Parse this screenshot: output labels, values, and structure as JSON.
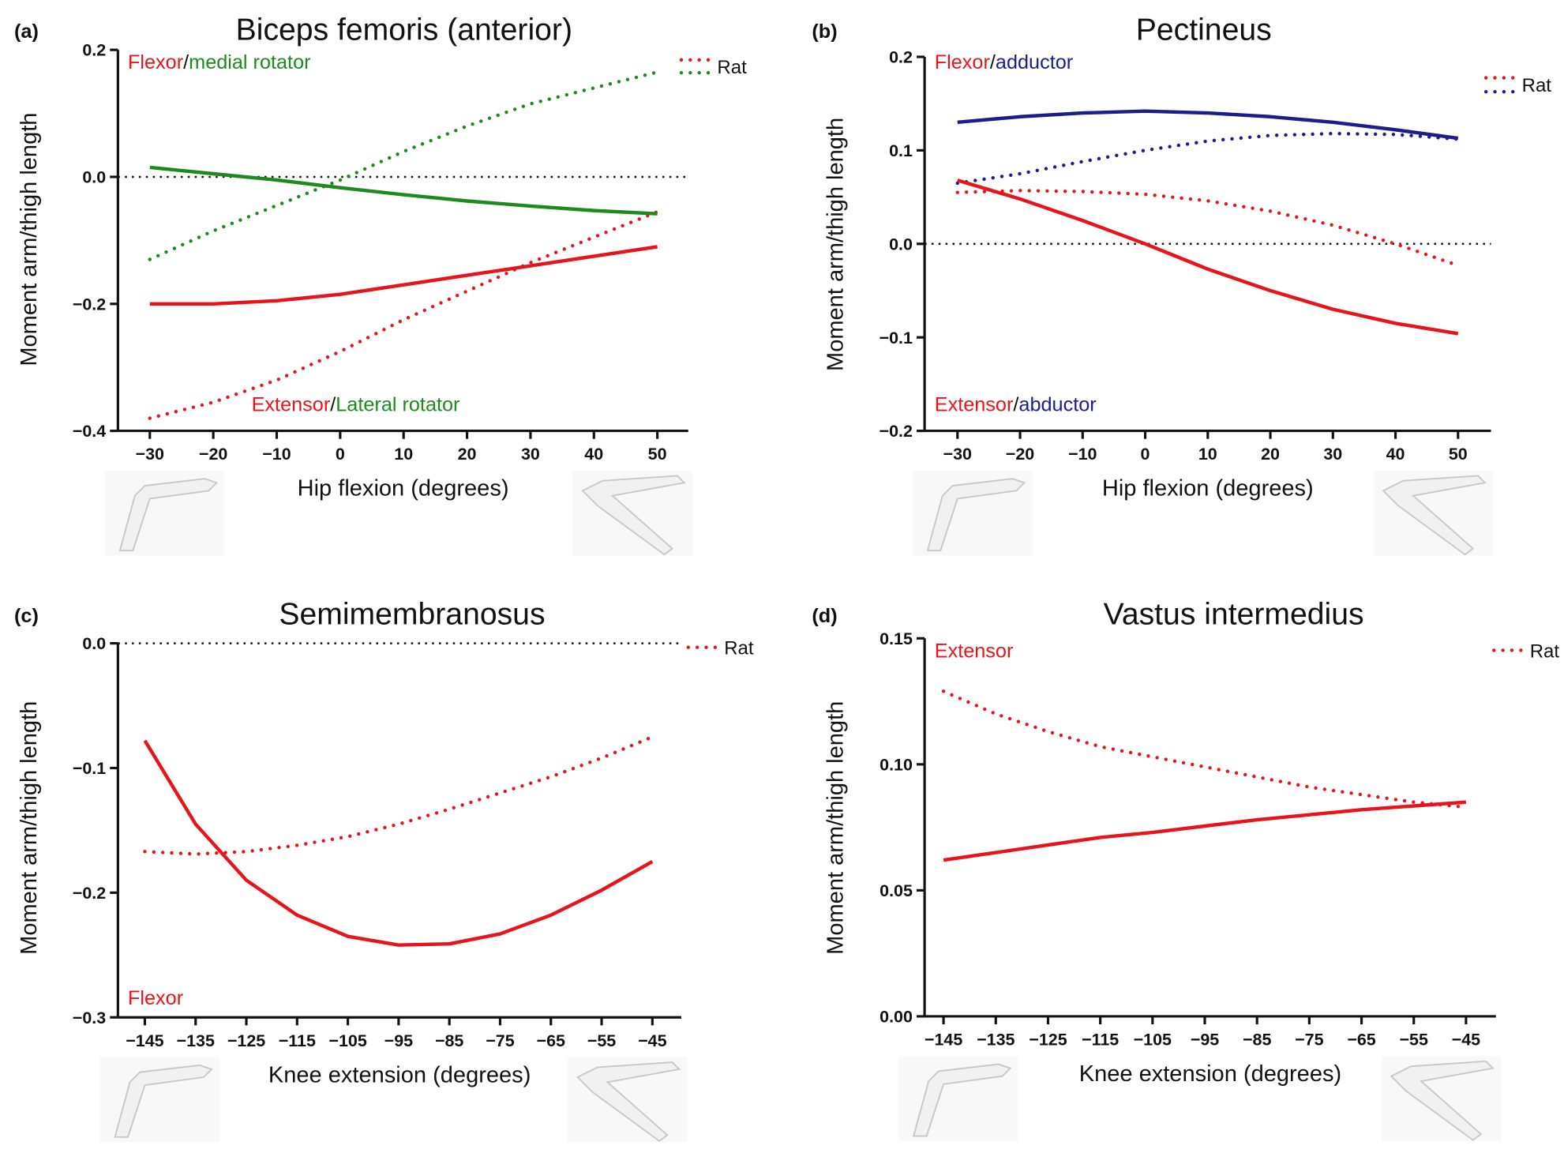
{
  "colors": {
    "red": "#e8141c",
    "green": "#1e8a1e",
    "blue": "#1c1c8c",
    "axis": "#111111"
  },
  "chart_data": [
    {
      "type": "line",
      "panel_label": "(a)",
      "title": "Biceps femoris (anterior)",
      "xlabel": "Hip flexion (degrees)",
      "ylabel": "Moment arm/thigh length",
      "xlim": [
        -30,
        50
      ],
      "ylim": [
        -0.4,
        0.2
      ],
      "xticks": [
        "−30",
        "−20",
        "−10",
        "0",
        "10",
        "20",
        "30",
        "40",
        "50"
      ],
      "xtick_values": [
        -30,
        -20,
        -10,
        0,
        10,
        20,
        30,
        40,
        50
      ],
      "yticks": [
        "0.2",
        "0.0",
        "−0.2",
        "−0.4"
      ],
      "ytick_values": [
        0.2,
        0.0,
        -0.2,
        -0.4
      ],
      "zero_line": true,
      "annotations": [
        {
          "parts": [
            {
              "text": "Flexor",
              "color": "red"
            },
            {
              "text": "/",
              "color": "axis"
            },
            {
              "text": "medial rotator",
              "color": "green"
            }
          ],
          "position": "top-left"
        },
        {
          "parts": [
            {
              "text": "Extensor",
              "color": "red"
            },
            {
              "text": "/",
              "color": "axis"
            },
            {
              "text": "Lateral rotator",
              "color": "green"
            }
          ],
          "position": "bottom-center"
        }
      ],
      "legend": {
        "label": "Rat",
        "style": "dotted",
        "colors": [
          "red",
          "green"
        ],
        "position": "top-right"
      },
      "x": [
        -30,
        -20,
        -10,
        0,
        10,
        20,
        30,
        40,
        50
      ],
      "series": [
        {
          "color": "red",
          "style": "solid",
          "values": [
            -0.2,
            -0.2,
            -0.195,
            -0.185,
            -0.17,
            -0.155,
            -0.14,
            -0.125,
            -0.11
          ]
        },
        {
          "color": "red",
          "style": "dotted",
          "values": [
            -0.38,
            -0.355,
            -0.32,
            -0.275,
            -0.225,
            -0.18,
            -0.135,
            -0.095,
            -0.055
          ]
        },
        {
          "color": "green",
          "style": "solid",
          "values": [
            0.015,
            0.005,
            -0.005,
            -0.017,
            -0.028,
            -0.038,
            -0.046,
            -0.053,
            -0.058
          ]
        },
        {
          "color": "green",
          "style": "dotted",
          "values": [
            -0.13,
            -0.085,
            -0.045,
            -0.005,
            0.04,
            0.08,
            0.115,
            0.14,
            0.165
          ]
        }
      ]
    },
    {
      "type": "line",
      "panel_label": "(b)",
      "title": "Pectineus",
      "xlabel": "Hip flexion (degrees)",
      "ylabel": "Moment arm/thigh length",
      "xlim": [
        -30,
        50
      ],
      "ylim": [
        -0.2,
        0.2
      ],
      "xticks": [
        "−30",
        "−20",
        "−10",
        "0",
        "10",
        "20",
        "30",
        "40",
        "50"
      ],
      "xtick_values": [
        -30,
        -20,
        -10,
        0,
        10,
        20,
        30,
        40,
        50
      ],
      "yticks": [
        "0.2",
        "0.1",
        "0.0",
        "−0.1",
        "−0.2"
      ],
      "ytick_values": [
        0.2,
        0.1,
        0.0,
        -0.1,
        -0.2
      ],
      "zero_line": true,
      "annotations": [
        {
          "parts": [
            {
              "text": "Flexor",
              "color": "red"
            },
            {
              "text": "/",
              "color": "axis"
            },
            {
              "text": "adductor",
              "color": "blue"
            }
          ],
          "position": "top-left"
        },
        {
          "parts": [
            {
              "text": "Extensor",
              "color": "red"
            },
            {
              "text": "/",
              "color": "axis"
            },
            {
              "text": "abductor",
              "color": "blue"
            }
          ],
          "position": "bottom-left"
        }
      ],
      "legend": {
        "label": "Rat",
        "style": "dotted",
        "colors": [
          "red",
          "blue"
        ],
        "position": "top-right"
      },
      "x": [
        -30,
        -20,
        -10,
        0,
        10,
        20,
        30,
        40,
        50
      ],
      "series": [
        {
          "color": "blue",
          "style": "solid",
          "values": [
            0.13,
            0.136,
            0.14,
            0.142,
            0.14,
            0.136,
            0.13,
            0.122,
            0.113
          ]
        },
        {
          "color": "blue",
          "style": "dotted",
          "values": [
            0.065,
            0.075,
            0.088,
            0.1,
            0.11,
            0.116,
            0.118,
            0.117,
            0.112
          ]
        },
        {
          "color": "red",
          "style": "solid",
          "values": [
            0.068,
            0.048,
            0.025,
            0.0,
            -0.027,
            -0.05,
            -0.07,
            -0.085,
            -0.096
          ]
        },
        {
          "color": "red",
          "style": "dotted",
          "values": [
            0.055,
            0.057,
            0.056,
            0.053,
            0.046,
            0.035,
            0.02,
            0.0,
            -0.023
          ]
        }
      ]
    },
    {
      "type": "line",
      "panel_label": "(c)",
      "title": "Semimembranosus",
      "xlabel": "Knee extension (degrees)",
      "ylabel": "Moment arm/thigh length",
      "xlim": [
        -145,
        -45
      ],
      "ylim": [
        -0.3,
        0.0
      ],
      "xticks": [
        "−145",
        "−135",
        "−125",
        "−115",
        "−105",
        "−95",
        "−85",
        "−75",
        "−65",
        "−55",
        "−45"
      ],
      "xtick_values": [
        -145,
        -135,
        -125,
        -115,
        -105,
        -95,
        -85,
        -75,
        -65,
        -55,
        -45
      ],
      "yticks": [
        "0.0",
        "−0.1",
        "−0.2",
        "−0.3"
      ],
      "ytick_values": [
        0.0,
        -0.1,
        -0.2,
        -0.3
      ],
      "zero_line": true,
      "annotations": [
        {
          "parts": [
            {
              "text": "Flexor",
              "color": "red"
            }
          ],
          "position": "bottom-left"
        }
      ],
      "legend": {
        "label": "Rat",
        "style": "dotted",
        "colors": [
          "red"
        ],
        "position": "top-right"
      },
      "x": [
        -145,
        -135,
        -125,
        -115,
        -105,
        -95,
        -85,
        -75,
        -65,
        -55,
        -45
      ],
      "series": [
        {
          "color": "red",
          "style": "solid",
          "values": [
            -0.078,
            -0.145,
            -0.19,
            -0.218,
            -0.235,
            -0.242,
            -0.241,
            -0.233,
            -0.218,
            -0.198,
            -0.175
          ]
        },
        {
          "color": "red",
          "style": "dotted",
          "values": [
            -0.167,
            -0.169,
            -0.167,
            -0.162,
            -0.155,
            -0.145,
            -0.133,
            -0.12,
            -0.107,
            -0.092,
            -0.075
          ]
        }
      ]
    },
    {
      "type": "line",
      "panel_label": "(d)",
      "title": "Vastus intermedius",
      "xlabel": "Knee extension (degrees)",
      "ylabel": "Moment arm/thigh length",
      "xlim": [
        -145,
        -45
      ],
      "ylim": [
        0.0,
        0.15
      ],
      "xticks": [
        "−145",
        "−135",
        "−125",
        "−115",
        "−105",
        "−95",
        "−85",
        "−75",
        "−65",
        "−55",
        "−45"
      ],
      "xtick_values": [
        -145,
        -135,
        -125,
        -115,
        -105,
        -95,
        -85,
        -75,
        -65,
        -55,
        -45
      ],
      "yticks": [
        "0.15",
        "0.10",
        "0.05",
        "0.00"
      ],
      "ytick_values": [
        0.15,
        0.1,
        0.05,
        0.0
      ],
      "zero_line": false,
      "annotations": [
        {
          "parts": [
            {
              "text": "Extensor",
              "color": "red"
            }
          ],
          "position": "top-left"
        }
      ],
      "legend": {
        "label": "Rat",
        "style": "dotted",
        "colors": [
          "red"
        ],
        "position": "top-right"
      },
      "x": [
        -145,
        -135,
        -125,
        -115,
        -105,
        -95,
        -85,
        -75,
        -65,
        -55,
        -45
      ],
      "series": [
        {
          "color": "red",
          "style": "solid",
          "values": [
            0.062,
            0.065,
            0.068,
            0.071,
            0.073,
            0.0755,
            0.078,
            0.08,
            0.082,
            0.0835,
            0.085
          ]
        },
        {
          "color": "red",
          "style": "dotted",
          "values": [
            0.129,
            0.12,
            0.113,
            0.107,
            0.103,
            0.099,
            0.095,
            0.091,
            0.088,
            0.085,
            0.083
          ]
        }
      ]
    }
  ]
}
